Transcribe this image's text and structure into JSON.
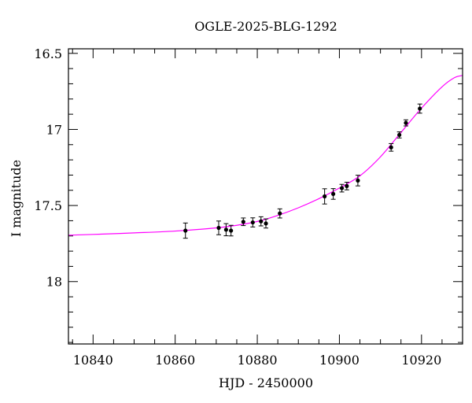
{
  "chart_data": {
    "type": "scatter",
    "title": "OGLE-2025-BLG-1292",
    "xlabel": "HJD - 2450000",
    "ylabel": "I magnitude",
    "xlim": [
      10834,
      10930
    ],
    "ylim": [
      18.41,
      16.47
    ],
    "y_inverted": true,
    "xticks_major": [
      10840,
      10860,
      10880,
      10900,
      10920
    ],
    "xtick_labels": [
      "10840",
      "10860",
      "10880",
      "10900",
      "10920"
    ],
    "yticks_major": [
      16.5,
      17,
      17.5,
      18
    ],
    "ytick_labels": [
      "16.5",
      "17",
      "17.5",
      "18"
    ],
    "grid": false,
    "colors": {
      "data": "#000000",
      "model": "#ff00ff",
      "frame": "#000000"
    },
    "series": [
      {
        "kind": "points_with_errorbars",
        "points": [
          {
            "x": 10862.5,
            "y": 17.665,
            "err": 0.05
          },
          {
            "x": 10870.6,
            "y": 17.647,
            "err": 0.045
          },
          {
            "x": 10872.4,
            "y": 17.659,
            "err": 0.04
          },
          {
            "x": 10873.6,
            "y": 17.665,
            "err": 0.035
          },
          {
            "x": 10876.6,
            "y": 17.607,
            "err": 0.025
          },
          {
            "x": 10878.9,
            "y": 17.611,
            "err": 0.03
          },
          {
            "x": 10880.9,
            "y": 17.604,
            "err": 0.03
          },
          {
            "x": 10882.1,
            "y": 17.618,
            "err": 0.03
          },
          {
            "x": 10885.5,
            "y": 17.552,
            "err": 0.03
          },
          {
            "x": 10896.4,
            "y": 17.44,
            "err": 0.05
          },
          {
            "x": 10898.5,
            "y": 17.424,
            "err": 0.035
          },
          {
            "x": 10900.6,
            "y": 17.386,
            "err": 0.025
          },
          {
            "x": 10901.8,
            "y": 17.372,
            "err": 0.025
          },
          {
            "x": 10904.5,
            "y": 17.336,
            "err": 0.035
          },
          {
            "x": 10912.6,
            "y": 17.118,
            "err": 0.025
          },
          {
            "x": 10914.6,
            "y": 17.036,
            "err": 0.02
          },
          {
            "x": 10916.2,
            "y": 16.957,
            "err": 0.02
          },
          {
            "x": 10919.6,
            "y": 16.863,
            "err": 0.03
          }
        ]
      },
      {
        "kind": "model_curve",
        "x": [
          10834,
          10840,
          10850,
          10860,
          10870,
          10875,
          10880,
          10885,
          10890,
          10895,
          10900,
          10905,
          10910,
          10915,
          10920,
          10925,
          10928,
          10930
        ],
        "y": [
          17.695,
          17.69,
          17.68,
          17.668,
          17.647,
          17.63,
          17.605,
          17.565,
          17.515,
          17.455,
          17.385,
          17.305,
          17.18,
          17.02,
          16.86,
          16.72,
          16.66,
          16.645
        ]
      }
    ]
  }
}
